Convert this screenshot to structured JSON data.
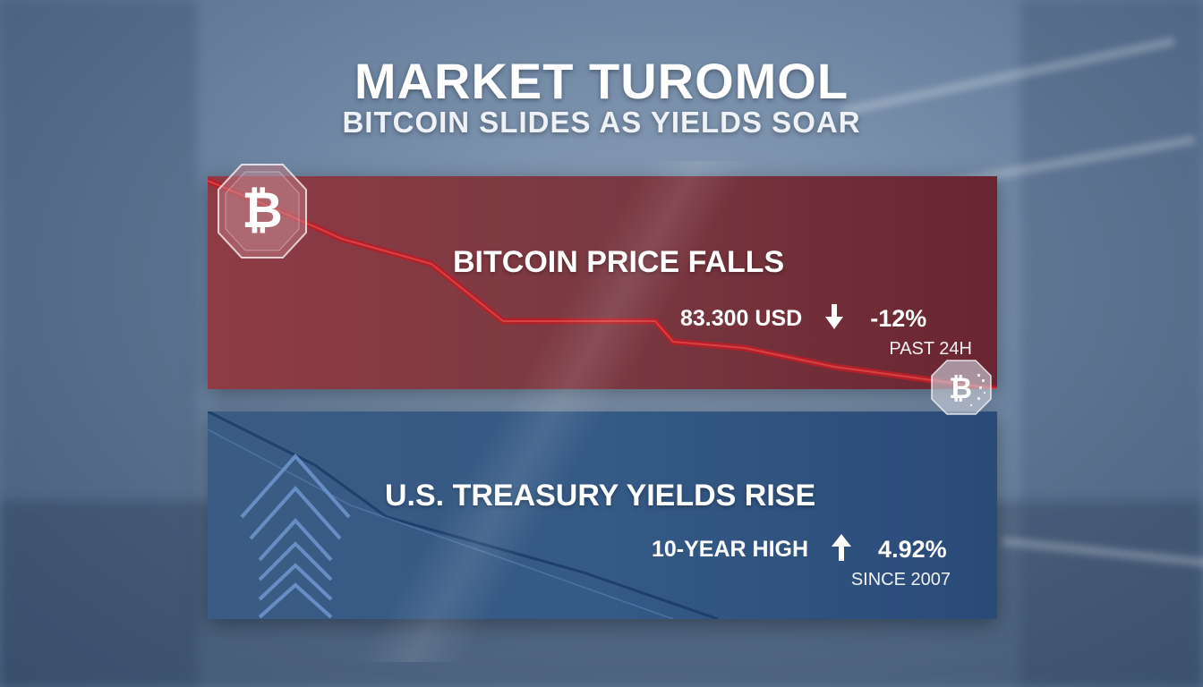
{
  "header": {
    "title": "MARKET TUROMOL",
    "subtitle": "BITCOIN SLIDES AS YIELDS SOAR"
  },
  "bitcoin_card": {
    "heading": "BITCOIN PRICE FALLS",
    "price": "83.300 USD",
    "change": "-12%",
    "period": "PAST 24H",
    "color": "#7a3942",
    "line_color": "#b3202a"
  },
  "treasury_card": {
    "heading": "U.S. TREASURY YIELDS RISE",
    "label": "10-YEAR HIGH",
    "value": "4.92%",
    "note": "SINCE 2007",
    "color": "#355a86"
  },
  "icons": {
    "coin_left": "bitcoin-icon",
    "coin_right": "bitcoin-icon",
    "down_arrow": "arrow-down-icon",
    "up_arrow": "arrow-up-icon",
    "chevrons": "chevron-up-icon"
  }
}
